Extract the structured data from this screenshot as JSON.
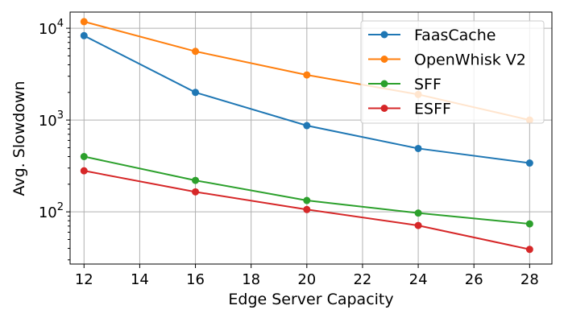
{
  "chart_data": {
    "type": "line",
    "xlabel": "Edge Server Capacity",
    "ylabel": "Avg. Slowdown",
    "y_scale": "log",
    "xlim": [
      11.5,
      28.8
    ],
    "ylim": [
      27,
      15000
    ],
    "x_ticks": [
      12,
      14,
      16,
      18,
      20,
      22,
      24,
      26,
      28
    ],
    "y_ticks": [
      {
        "value": 100,
        "base": "10",
        "exp": "2"
      },
      {
        "value": 1000,
        "base": "10",
        "exp": "3"
      },
      {
        "value": 10000,
        "base": "10",
        "exp": "4"
      }
    ],
    "grid": true,
    "legend_position": "top-right",
    "x": [
      12,
      16,
      20,
      24,
      28
    ],
    "series": [
      {
        "name": "FaasCache",
        "color": "#1f77b4",
        "values": [
          8300,
          2000,
          870,
          490,
          340
        ]
      },
      {
        "name": "OpenWhisk V2",
        "color": "#ff7f0e",
        "values": [
          11800,
          5600,
          3100,
          1900,
          1000
        ]
      },
      {
        "name": "SFF",
        "color": "#2ca02c",
        "values": [
          400,
          220,
          133,
          97,
          74
        ]
      },
      {
        "name": "ESFF",
        "color": "#d62728",
        "values": [
          280,
          165,
          106,
          71,
          39
        ]
      }
    ]
  }
}
